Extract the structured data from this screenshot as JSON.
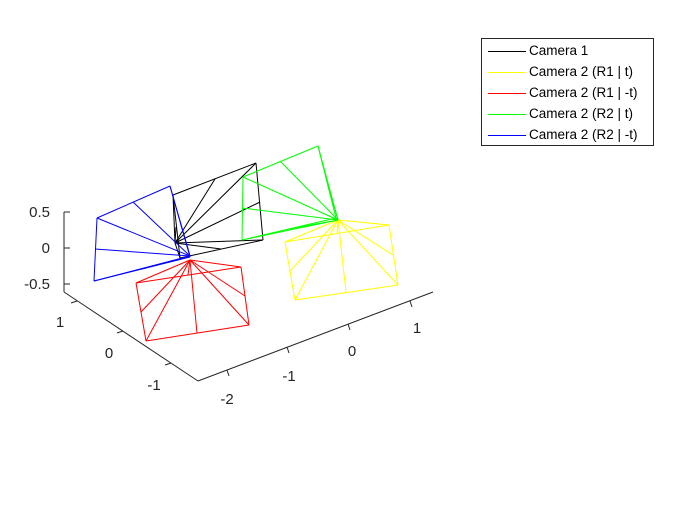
{
  "chart_data": {
    "type": "line",
    "subtype": "3d-wireframe",
    "title": "",
    "xlabel": "",
    "ylabel": "",
    "zlabel": "",
    "x_ticks": [
      "-2",
      "-1",
      "0",
      "1"
    ],
    "y_ticks": [
      "-1",
      "0",
      "1"
    ],
    "z_ticks": [
      "-0.5",
      "0",
      "0.5"
    ],
    "grid": false,
    "legend_position": "top-right",
    "series": [
      {
        "name": "Camera 1",
        "color": "#000000",
        "apex": [
          175,
          243
        ],
        "base": [
          [
            173,
            195
          ],
          [
            256,
            163
          ],
          [
            263,
            240
          ],
          [
            180,
            258
          ]
        ],
        "mids": [
          [
            215,
            179
          ],
          [
            260,
            202
          ],
          [
            221,
            249
          ],
          [
            176,
            227
          ]
        ]
      },
      {
        "name": "Camera 2 (R1 | t)",
        "color": "#ffff00",
        "apex": [
          338,
          220
        ],
        "base": [
          [
            285,
            242
          ],
          [
            389,
            225
          ],
          [
            398,
            285
          ],
          [
            295,
            300
          ]
        ],
        "mids": [
          [
            337,
            234
          ],
          [
            393,
            255
          ],
          [
            346,
            292
          ],
          [
            290,
            271
          ]
        ]
      },
      {
        "name": "Camera 2 (R1 | -t)",
        "color": "#ff0000",
        "apex": [
          190,
          260
        ],
        "base": [
          [
            136,
            283
          ],
          [
            241,
            267
          ],
          [
            249,
            325
          ],
          [
            146,
            341
          ]
        ],
        "mids": [
          [
            188,
            275
          ],
          [
            245,
            296
          ],
          [
            197,
            333
          ],
          [
            141,
            312
          ]
        ]
      },
      {
        "name": "Camera 2 (R2 | t)",
        "color": "#00ff00",
        "apex": [
          338,
          220
        ],
        "base": [
          [
            243,
            177
          ],
          [
            318,
            146
          ],
          [
            336,
            218
          ],
          [
            242,
            240
          ]
        ],
        "mids": [
          [
            280,
            161
          ],
          [
            327,
            182
          ],
          [
            289,
            229
          ],
          [
            242,
            208
          ]
        ]
      },
      {
        "name": "Camera 2 (R2 | -t)",
        "color": "#0000ff",
        "apex": [
          190,
          256
        ],
        "base": [
          [
            97,
            218
          ],
          [
            170,
            186
          ],
          [
            190,
            257
          ],
          [
            94,
            281
          ]
        ],
        "mids": [
          [
            133,
            202
          ],
          [
            180,
            221
          ],
          [
            142,
            269
          ],
          [
            95,
            249
          ]
        ]
      }
    ]
  }
}
